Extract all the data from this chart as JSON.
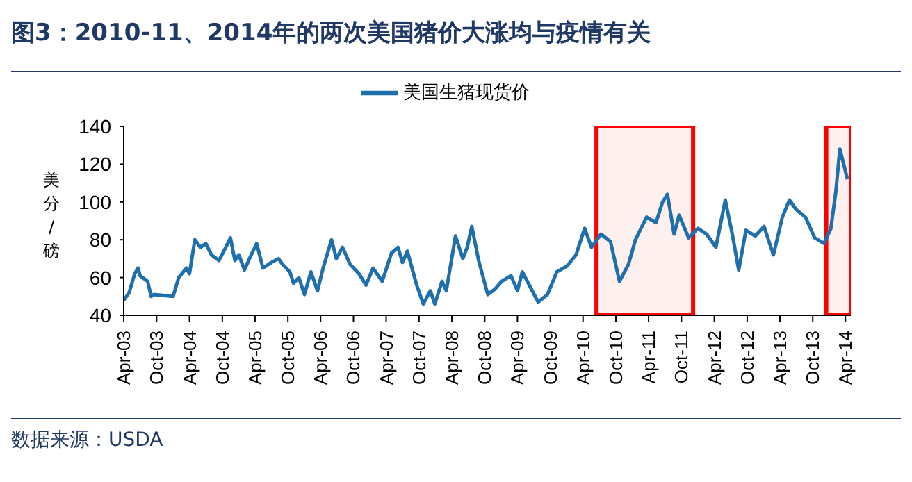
{
  "chart_data": {
    "type": "line",
    "title": "图3：2010-11、2014年的两次美国猪价大涨均与疫情有关",
    "ylabel": "美分/磅",
    "annotations": [
      "数据来源：USDA"
    ],
    "legend": "top",
    "grid": false,
    "marker": "none",
    "line_style": "solid",
    "xlim": [
      "2003-04",
      "2014-05"
    ],
    "xticks": [
      {
        "value": "2003-04",
        "label": "Apr-03"
      },
      {
        "value": "2003-10",
        "label": "Oct-03"
      },
      {
        "value": "2004-04",
        "label": "Apr-04"
      },
      {
        "value": "2004-10",
        "label": "Oct-04"
      },
      {
        "value": "2005-04",
        "label": "Apr-05"
      },
      {
        "value": "2005-10",
        "label": "Oct-05"
      },
      {
        "value": "2006-04",
        "label": "Apr-06"
      },
      {
        "value": "2006-10",
        "label": "Oct-06"
      },
      {
        "value": "2007-04",
        "label": "Apr-07"
      },
      {
        "value": "2007-10",
        "label": "Oct-07"
      },
      {
        "value": "2008-04",
        "label": "Apr-08"
      },
      {
        "value": "2008-10",
        "label": "Oct-08"
      },
      {
        "value": "2009-04",
        "label": "Apr-09"
      },
      {
        "value": "2009-10",
        "label": "Oct-09"
      },
      {
        "value": "2010-04",
        "label": "Apr-10"
      },
      {
        "value": "2010-10",
        "label": "Oct-10"
      },
      {
        "value": "2011-04",
        "label": "Apr-11"
      },
      {
        "value": "2011-10",
        "label": "Oct-11"
      },
      {
        "value": "2012-04",
        "label": "Apr-12"
      },
      {
        "value": "2012-10",
        "label": "Oct-12"
      },
      {
        "value": "2013-04",
        "label": "Apr-13"
      },
      {
        "value": "2013-10",
        "label": "Oct-13"
      },
      {
        "value": "2014-04",
        "label": "Apr-14"
      }
    ],
    "ylim": [
      40,
      140
    ],
    "yticks": [
      40,
      60,
      80,
      100,
      120,
      140
    ],
    "bands": [
      {
        "axis": "x",
        "from": "2010-06-15",
        "to": "2011-12-05",
        "color": "#ff0000"
      },
      {
        "axis": "x",
        "from": "2013-12-15",
        "to": "2014-05",
        "color": "#ff0000"
      }
    ],
    "series": [
      {
        "name": "美国生猪现货价",
        "color": "#1f6fad",
        "x": [
          "2003-04",
          "2003-05",
          "2003-06",
          "2003-06-20",
          "2003-07",
          "2003-08-12",
          "2003-09",
          "2003-09-15",
          "2004-01",
          "2004-02",
          "2004-03-15",
          "2004-04",
          "2004-05",
          "2004-06",
          "2004-07",
          "2004-08",
          "2004-09-12",
          "2004-10-20",
          "2004-11-15",
          "2004-12-10",
          "2005-01",
          "2005-02",
          "2005-03",
          "2005-04-10",
          "2005-05-15",
          "2005-07",
          "2005-08-10",
          "2005-09",
          "2005-10-12",
          "2005-11",
          "2005-12",
          "2006-01",
          "2006-02-06",
          "2006-03-15",
          "2006-04-15",
          "2006-06",
          "2006-06-28",
          "2006-08",
          "2006-09-12",
          "2006-11",
          "2006-12-10",
          "2007-01-18",
          "2007-03-10",
          "2007-05",
          "2007-06-06",
          "2007-07",
          "2007-07-28",
          "2007-09-18",
          "2007-10-25",
          "2007-12-03",
          "2007-12-28",
          "2008-02-06",
          "2008-03",
          "2008-04-21",
          "2008-06",
          "2008-06-25",
          "2008-07-21",
          "2008-08-28",
          "2008-10-18",
          "2008-11-28",
          "2009-01-03",
          "2009-02-24",
          "2009-04",
          "2009-04-28",
          "2009-06-06",
          "2009-07-25",
          "2009-09-15",
          "2009-11-06",
          "2010-01",
          "2010-02-21",
          "2010-04-10",
          "2010-05-18",
          "2010-07-10",
          "2010-09",
          "2010-10-21",
          "2010-12-10",
          "2011-01-18",
          "2011-03-21",
          "2011-05-12",
          "2011-06-18",
          "2011-07-15",
          "2011-08-21",
          "2011-09-18",
          "2011-11-10",
          "2012-01",
          "2012-02-18",
          "2012-04-10",
          "2012-06",
          "2012-07-10",
          "2012-08-15",
          "2012-09-24",
          "2012-11-15",
          "2013-01-03",
          "2013-02-24",
          "2013-04-15",
          "2013-05-24",
          "2013-07",
          "2013-08-21",
          "2013-10-12",
          "2013-12-03",
          "2014-01-10",
          "2014-02-06",
          "2014-03",
          "2014-03-25",
          "2014-04-12"
        ],
        "values": [
          48,
          52,
          62,
          65,
          61,
          58,
          50,
          51,
          50,
          60,
          65,
          62,
          80,
          76,
          78,
          72,
          69,
          76,
          81,
          69,
          72,
          64,
          70,
          78,
          65,
          68,
          70,
          67,
          63,
          57,
          60,
          51,
          63,
          53,
          65,
          80,
          70,
          76,
          67,
          62,
          56,
          65,
          58,
          73,
          76,
          68,
          74,
          56,
          46,
          53,
          46,
          58,
          53,
          82,
          70,
          76,
          87,
          69,
          51,
          54,
          58,
          61,
          53,
          63,
          56,
          47,
          51,
          63,
          66,
          72,
          86,
          76,
          83,
          79,
          58,
          67,
          80,
          92,
          89,
          100,
          104,
          83,
          93,
          81,
          86,
          83,
          76,
          101,
          83,
          64,
          85,
          82,
          87,
          72,
          92,
          101,
          96,
          92,
          81,
          78,
          86,
          105,
          128,
          119,
          112
        ]
      }
    ]
  }
}
